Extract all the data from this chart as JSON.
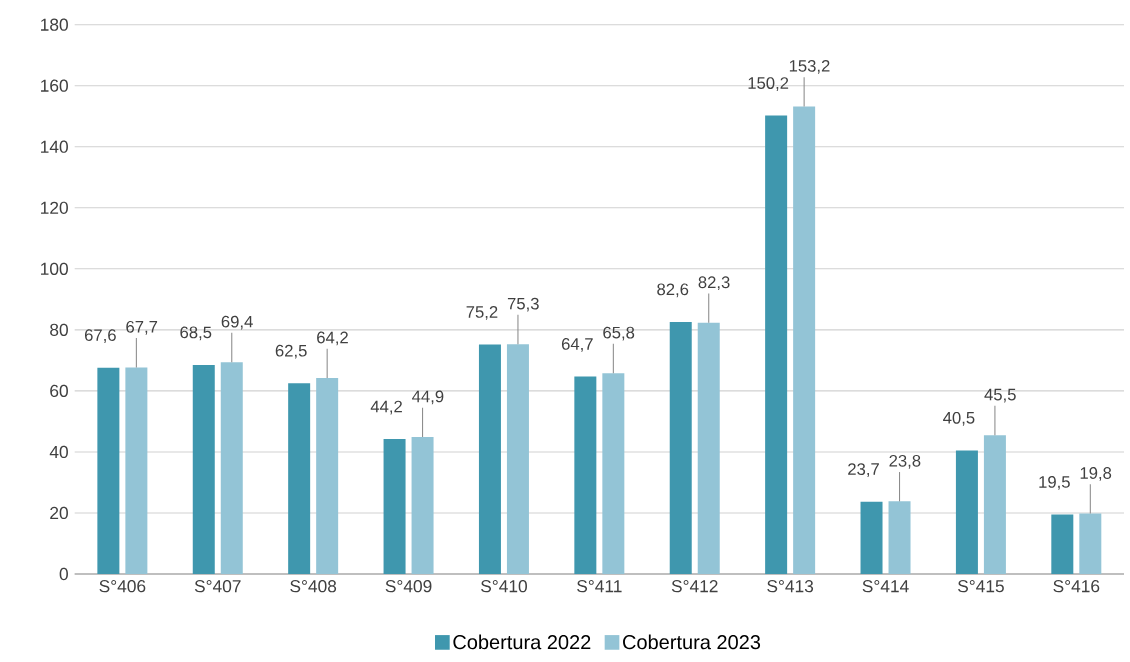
{
  "chart_data": {
    "type": "bar",
    "categories": [
      "S°406",
      "S°407",
      "S°408",
      "S°409",
      "S°410",
      "S°411",
      "S°412",
      "S°413",
      "S°414",
      "S°415",
      "S°416"
    ],
    "series": [
      {
        "name": "Cobertura 2022",
        "color": "#3f97ae",
        "values": [
          67.6,
          68.5,
          62.5,
          44.2,
          75.2,
          64.7,
          82.6,
          150.2,
          23.7,
          40.5,
          19.5
        ],
        "value_labels": [
          "67,6",
          "68,5",
          "62,5",
          "44,2",
          "75,2",
          "64,7",
          "82,6",
          "150,2",
          "23,7",
          "40,5",
          "19,5"
        ]
      },
      {
        "name": "Cobertura 2023",
        "color": "#93c4d6",
        "values": [
          67.7,
          69.4,
          64.2,
          44.9,
          75.3,
          65.8,
          82.3,
          153.2,
          23.8,
          45.5,
          19.8
        ],
        "value_labels": [
          "67,7",
          "69,4",
          "64,2",
          "44,9",
          "75,3",
          "65,8",
          "82,3",
          "153,2",
          "23,8",
          "45,5",
          "19,8"
        ]
      }
    ],
    "ylim": [
      0,
      180
    ],
    "yticks": [
      0,
      20,
      40,
      60,
      80,
      100,
      120,
      140,
      160,
      180
    ],
    "grid": "y",
    "legend": "bottom"
  }
}
